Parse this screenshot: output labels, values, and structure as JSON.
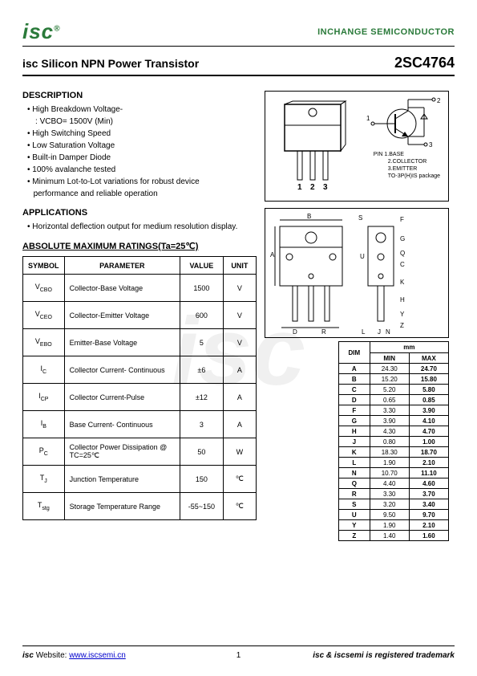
{
  "header": {
    "logo": "isc",
    "company": "INCHANGE SEMICONDUCTOR",
    "title_prefix": "isc",
    "title": "Silicon NPN Power Transistor",
    "part_number": "2SC4764"
  },
  "description": {
    "heading": "DESCRIPTION",
    "items": [
      "High Breakdown Voltage-",
      "VCBO= 1500V (Min)",
      "High Switching Speed",
      "Low Saturation Voltage",
      "Built-in Damper Diode",
      "100% avalanche tested",
      "Minimum Lot-to-Lot variations for robust device",
      "performance and reliable operation"
    ]
  },
  "applications": {
    "heading": "APPLICATIONS",
    "items": [
      "Horizontal deflection output for medium resolution display."
    ]
  },
  "ratings": {
    "heading": "ABSOLUTE MAXIMUM RATINGS(Ta=25℃)",
    "columns": [
      "SYMBOL",
      "PARAMETER",
      "VALUE",
      "UNIT"
    ],
    "rows": [
      {
        "sym": "V",
        "sub": "CBO",
        "param": "Collector-Base Voltage",
        "value": "1500",
        "unit": "V"
      },
      {
        "sym": "V",
        "sub": "CEO",
        "param": "Collector-Emitter Voltage",
        "value": "600",
        "unit": "V"
      },
      {
        "sym": "V",
        "sub": "EBO",
        "param": "Emitter-Base Voltage",
        "value": "5",
        "unit": "V"
      },
      {
        "sym": "I",
        "sub": "C",
        "param": "Collector Current- Continuous",
        "value": "±6",
        "unit": "A"
      },
      {
        "sym": "I",
        "sub": "CP",
        "param": "Collector Current-Pulse",
        "value": "±12",
        "unit": "A"
      },
      {
        "sym": "I",
        "sub": "B",
        "param": "Base Current- Continuous",
        "value": "3",
        "unit": "A"
      },
      {
        "sym": "P",
        "sub": "C",
        "param": "Collector Power Dissipation @ TC=25℃",
        "value": "50",
        "unit": "W"
      },
      {
        "sym": "T",
        "sub": "J",
        "param": "Junction Temperature",
        "value": "150",
        "unit": "℃"
      },
      {
        "sym": "T",
        "sub": "stg",
        "param": "Storage Temperature Range",
        "value": "-55~150",
        "unit": "℃"
      }
    ]
  },
  "package": {
    "pins": [
      "1",
      "2",
      "3"
    ],
    "pin_labels_heading": "PIN",
    "pin_labels": [
      "1.BASE",
      "2.COLLECTOR",
      "3.EMITTER"
    ],
    "pkg_type": "TO-3P(H)IS package",
    "schematic_pins": [
      "1",
      "2",
      "3"
    ]
  },
  "dimensions": {
    "mm_label": "mm",
    "columns": [
      "DIM",
      "MIN",
      "MAX"
    ],
    "rows": [
      {
        "dim": "A",
        "min": "24.30",
        "max": "24.70"
      },
      {
        "dim": "B",
        "min": "15.20",
        "max": "15.80"
      },
      {
        "dim": "C",
        "min": "5.20",
        "max": "5.80"
      },
      {
        "dim": "D",
        "min": "0.65",
        "max": "0.85"
      },
      {
        "dim": "F",
        "min": "3.30",
        "max": "3.90"
      },
      {
        "dim": "G",
        "min": "3.90",
        "max": "4.10"
      },
      {
        "dim": "H",
        "min": "4.30",
        "max": "4.70"
      },
      {
        "dim": "J",
        "min": "0.80",
        "max": "1.00"
      },
      {
        "dim": "K",
        "min": "18.30",
        "max": "18.70"
      },
      {
        "dim": "L",
        "min": "1.90",
        "max": "2.10"
      },
      {
        "dim": "N",
        "min": "10.70",
        "max": "11.10"
      },
      {
        "dim": "Q",
        "min": "4.40",
        "max": "4.60"
      },
      {
        "dim": "R",
        "min": "3.30",
        "max": "3.70"
      },
      {
        "dim": "S",
        "min": "3.20",
        "max": "3.40"
      },
      {
        "dim": "U",
        "min": "9.50",
        "max": "9.70"
      },
      {
        "dim": "Y",
        "min": "1.90",
        "max": "2.10"
      },
      {
        "dim": "Z",
        "min": "1.40",
        "max": "1.60"
      }
    ],
    "drawing_labels": [
      "B",
      "D",
      "A",
      "S",
      "F",
      "G",
      "J",
      "Q",
      "C",
      "K",
      "H",
      "Y",
      "Z",
      "L",
      "N",
      "U",
      "R"
    ]
  },
  "footer": {
    "left_prefix": "isc",
    "left_label": "Website:",
    "url_text": "www.iscsemi.cn",
    "page": "1",
    "right": "isc & iscsemi is registered trademark"
  },
  "watermark": "isc"
}
